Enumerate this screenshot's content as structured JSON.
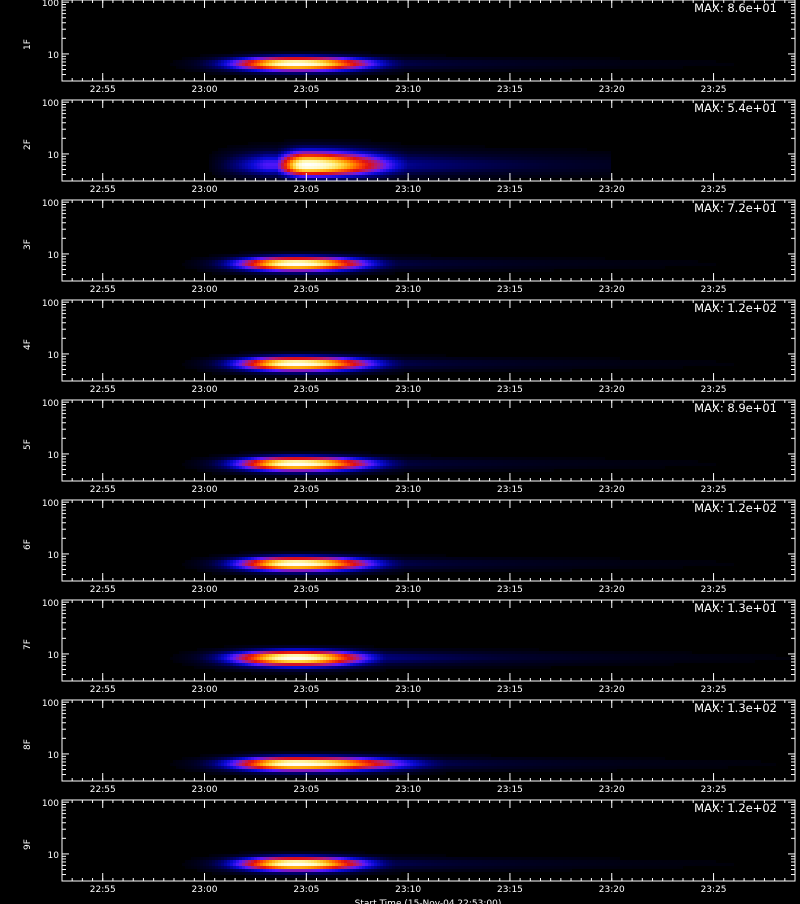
{
  "chart_data": {
    "type": "heatmap",
    "x_axis": {
      "range": [
        "22:53:00",
        "23:29:00"
      ],
      "tick_labels": [
        "22:55",
        "23:00",
        "23:05",
        "23:10",
        "23:15",
        "23:20",
        "23:25"
      ],
      "tick_values": [
        "22:55",
        "23:00",
        "23:05",
        "23:10",
        "23:15",
        "23:20",
        "23:25"
      ],
      "minor_tick_minutes": 0.5
    },
    "y_axis": {
      "scale": "log",
      "range": [
        3,
        110
      ],
      "tick_labels": [
        "10",
        "100"
      ],
      "tick_values": [
        10,
        100
      ]
    },
    "colormap": [
      "#000000",
      "#00002e",
      "#00007a",
      "#0a0ad8",
      "#5a18ff",
      "#b01c7a",
      "#e01010",
      "#ff4a00",
      "#ff9a00",
      "#ffd840",
      "#fff8b0",
      "#ffffff"
    ],
    "grid": false,
    "footer_label": "Start Time (15-Nov-04 22:53:00)",
    "panels": [
      {
        "label": "1F",
        "max_label": "MAX: 8.6e+01",
        "max": 86,
        "peak_time": "23:04:30",
        "peak_energy": 6.5,
        "duration_before_min": 2.2,
        "duration_after_min": 2.6,
        "tail_to_time": "23:29:00",
        "tail_intensity": 0.22,
        "band_low": 4.5,
        "band_high": 9
      },
      {
        "label": "2F",
        "max_label": "MAX: 5.4e+01",
        "max": 54,
        "peak_time": "23:05:00",
        "peak_energy": 6.0,
        "duration_before_min": 1.0,
        "duration_after_min": 2.8,
        "tail_to_time": "23:20:00",
        "tail_intensity": 0.35,
        "band_low": 3.5,
        "band_high": 12
      },
      {
        "label": "3F",
        "max_label": "MAX: 7.2e+01",
        "max": 72,
        "peak_time": "23:04:30",
        "peak_energy": 6.5,
        "duration_before_min": 2.0,
        "duration_after_min": 2.4,
        "tail_to_time": "23:29:00",
        "tail_intensity": 0.2,
        "band_low": 4.5,
        "band_high": 9
      },
      {
        "label": "4F",
        "max_label": "MAX: 1.2e+02",
        "max": 120,
        "peak_time": "23:04:30",
        "peak_energy": 6.5,
        "duration_before_min": 2.0,
        "duration_after_min": 2.6,
        "tail_to_time": "23:29:00",
        "tail_intensity": 0.22,
        "band_low": 4.5,
        "band_high": 9
      },
      {
        "label": "5F",
        "max_label": "MAX: 8.9e+01",
        "max": 89,
        "peak_time": "23:04:30",
        "peak_energy": 6.5,
        "duration_before_min": 2.0,
        "duration_after_min": 2.6,
        "tail_to_time": "23:29:00",
        "tail_intensity": 0.2,
        "band_low": 4.5,
        "band_high": 9
      },
      {
        "label": "6F",
        "max_label": "MAX: 1.2e+02",
        "max": 120,
        "peak_time": "23:04:30",
        "peak_energy": 6.5,
        "duration_before_min": 2.0,
        "duration_after_min": 2.6,
        "tail_to_time": "23:29:00",
        "tail_intensity": 0.22,
        "band_low": 4.5,
        "band_high": 9
      },
      {
        "label": "7F",
        "max_label": "MAX: 1.3e+01",
        "max": 13,
        "peak_time": "23:04:30",
        "peak_energy": 8.5,
        "duration_before_min": 2.2,
        "duration_after_min": 2.4,
        "tail_to_time": "23:29:00",
        "tail_intensity": 0.3,
        "band_low": 5.5,
        "band_high": 12
      },
      {
        "label": "8F",
        "max_label": "MAX: 1.3e+02",
        "max": 130,
        "peak_time": "23:04:30",
        "peak_energy": 6.5,
        "duration_before_min": 2.2,
        "duration_after_min": 3.6,
        "tail_to_time": "23:29:00",
        "tail_intensity": 0.28,
        "band_low": 4.5,
        "band_high": 9
      },
      {
        "label": "9F",
        "max_label": "MAX: 1.2e+02",
        "max": 120,
        "peak_time": "23:04:30",
        "peak_energy": 6.5,
        "duration_before_min": 2.0,
        "duration_after_min": 2.4,
        "tail_to_time": "23:29:00",
        "tail_intensity": 0.22,
        "band_low": 4.5,
        "band_high": 9
      }
    ]
  }
}
